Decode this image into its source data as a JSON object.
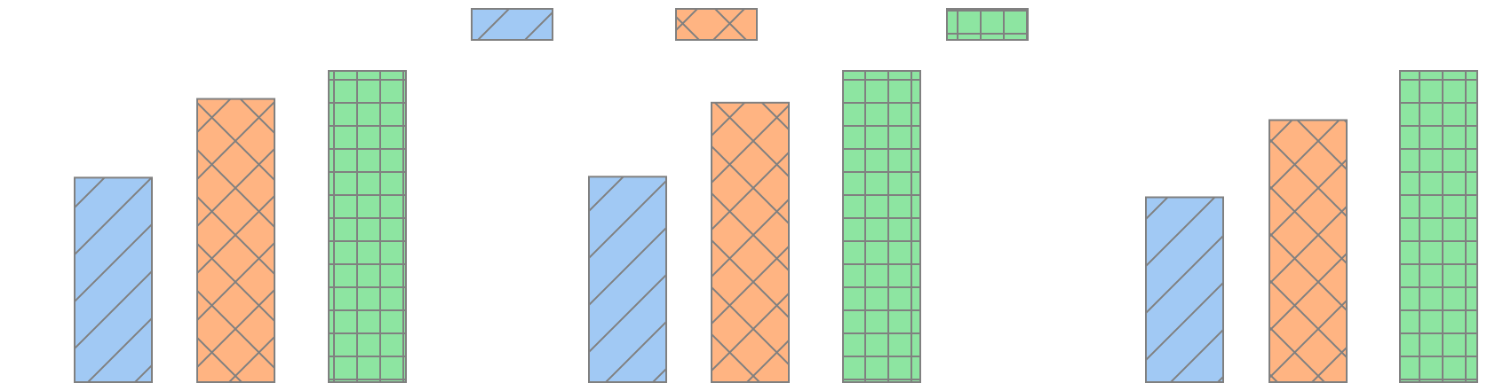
{
  "chart_data": {
    "type": "bar",
    "title": "",
    "xlabel": "",
    "ylabel": "",
    "ylim": [
      0,
      100
    ],
    "grid": false,
    "legend_placement": "top-center",
    "categories": [
      "",
      "",
      ""
    ],
    "series": [
      {
        "color": "#a1c9f4",
        "pattern": "diagonal",
        "values": [
          65.7,
          66.0,
          59.4
        ]
      },
      {
        "color": "#ffb482",
        "pattern": "crosshatch",
        "values": [
          91.0,
          89.8,
          84.2
        ]
      },
      {
        "color": "#8de5a1",
        "pattern": "grid",
        "values": [
          100.0,
          100.0,
          100.0
        ]
      }
    ],
    "edge_color": "#808080"
  }
}
